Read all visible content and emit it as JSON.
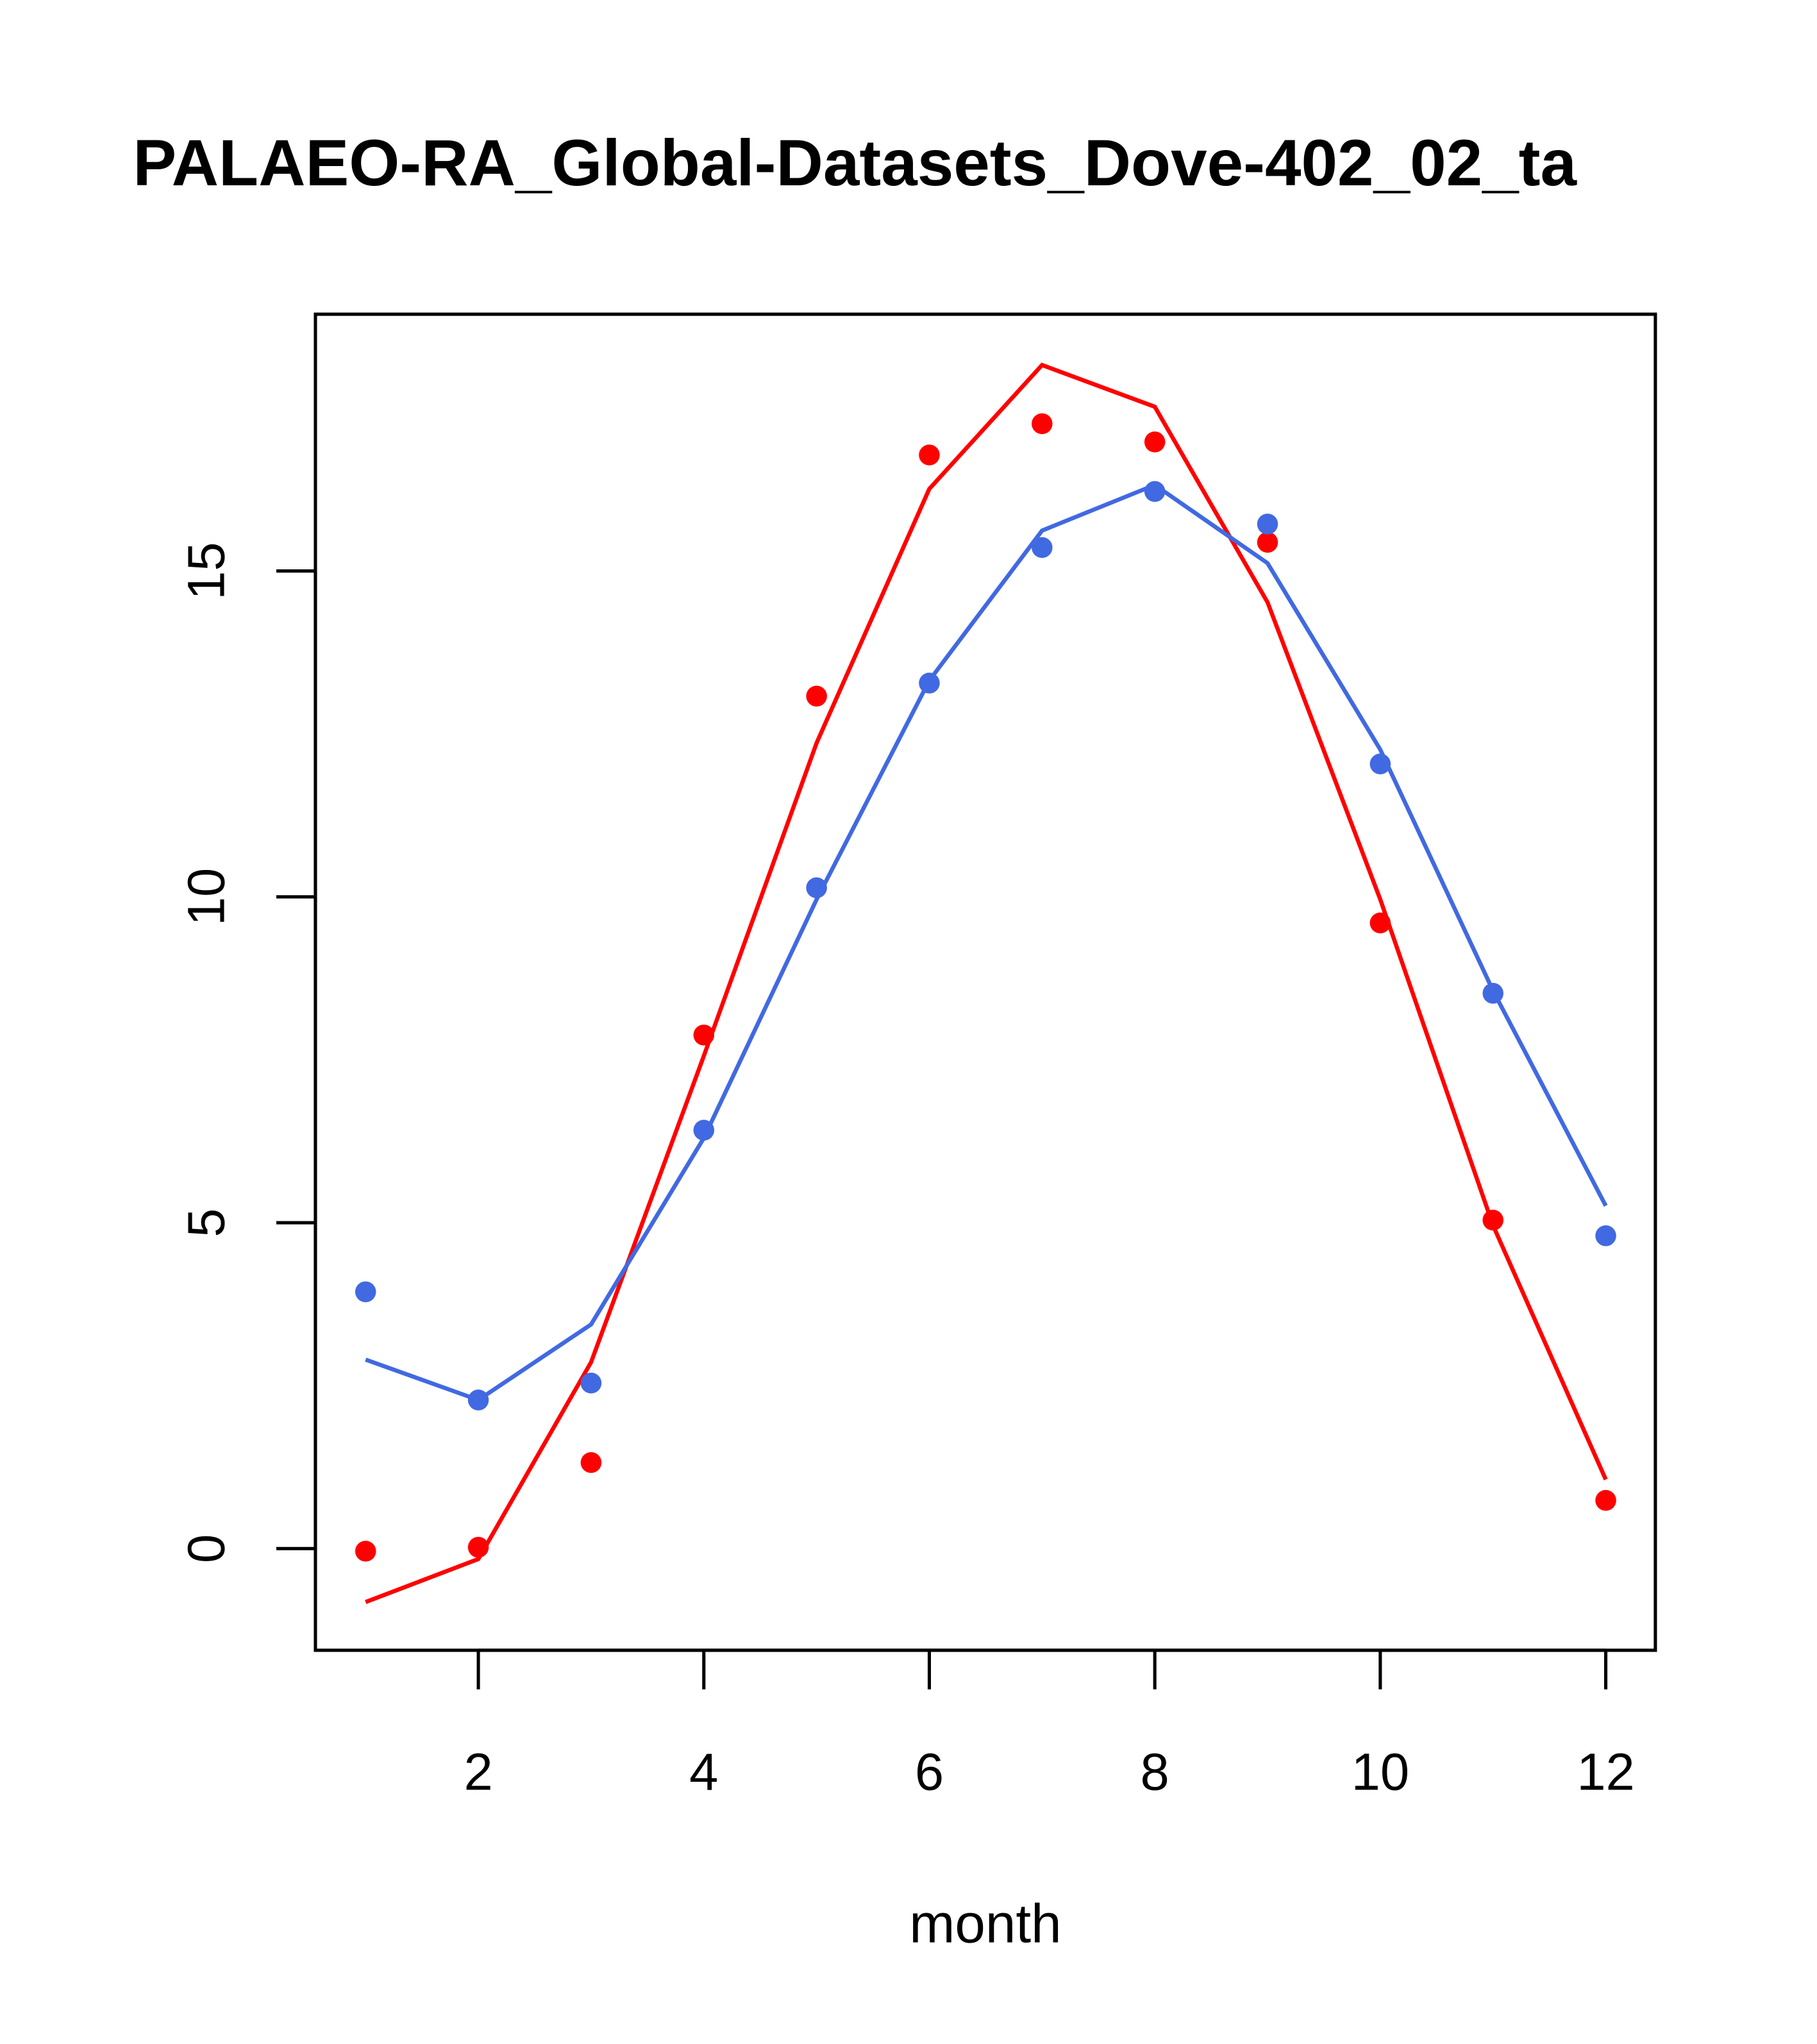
{
  "chart_data": {
    "type": "line",
    "title": "PALAEO-RA_Global-Datasets_Dove-402_02_ta",
    "xlabel": "month",
    "ylabel": "",
    "xlim": [
      0.555,
      12.44
    ],
    "ylim": [
      -1.56,
      18.94
    ],
    "grid": false,
    "x_ticks": [
      2,
      4,
      6,
      8,
      10,
      12
    ],
    "x_tick_labels": [
      "2",
      "4",
      "6",
      "8",
      "10",
      "12"
    ],
    "y_ticks": [
      0,
      5,
      10,
      15
    ],
    "y_tick_labels": [
      "0",
      "5",
      "10",
      "15"
    ],
    "x": [
      1,
      2,
      3,
      4,
      5,
      6,
      7,
      8,
      9,
      10,
      11,
      12
    ],
    "series": [
      {
        "name": "red points",
        "kind": "points",
        "color": "#ff0000",
        "values": [
          -0.04,
          0.02,
          1.32,
          7.88,
          13.08,
          16.78,
          17.26,
          16.98,
          15.44,
          9.6,
          5.04,
          0.74
        ]
      },
      {
        "name": "red line",
        "kind": "line",
        "color": "#ff0000",
        "values": [
          -0.82,
          -0.16,
          2.86,
          7.56,
          12.36,
          16.26,
          18.16,
          17.52,
          14.52,
          9.96,
          4.96,
          1.06
        ]
      },
      {
        "name": "blue points",
        "kind": "points",
        "color": "#4169e1",
        "values": [
          3.94,
          2.28,
          2.54,
          6.42,
          10.14,
          13.28,
          15.36,
          16.22,
          15.72,
          12.04,
          8.52,
          4.8
        ]
      },
      {
        "name": "blue line",
        "kind": "line",
        "color": "#4169e1",
        "values": [
          2.9,
          2.28,
          3.44,
          6.3,
          9.96,
          13.32,
          15.62,
          16.32,
          15.12,
          12.26,
          8.56,
          5.26
        ]
      }
    ]
  }
}
